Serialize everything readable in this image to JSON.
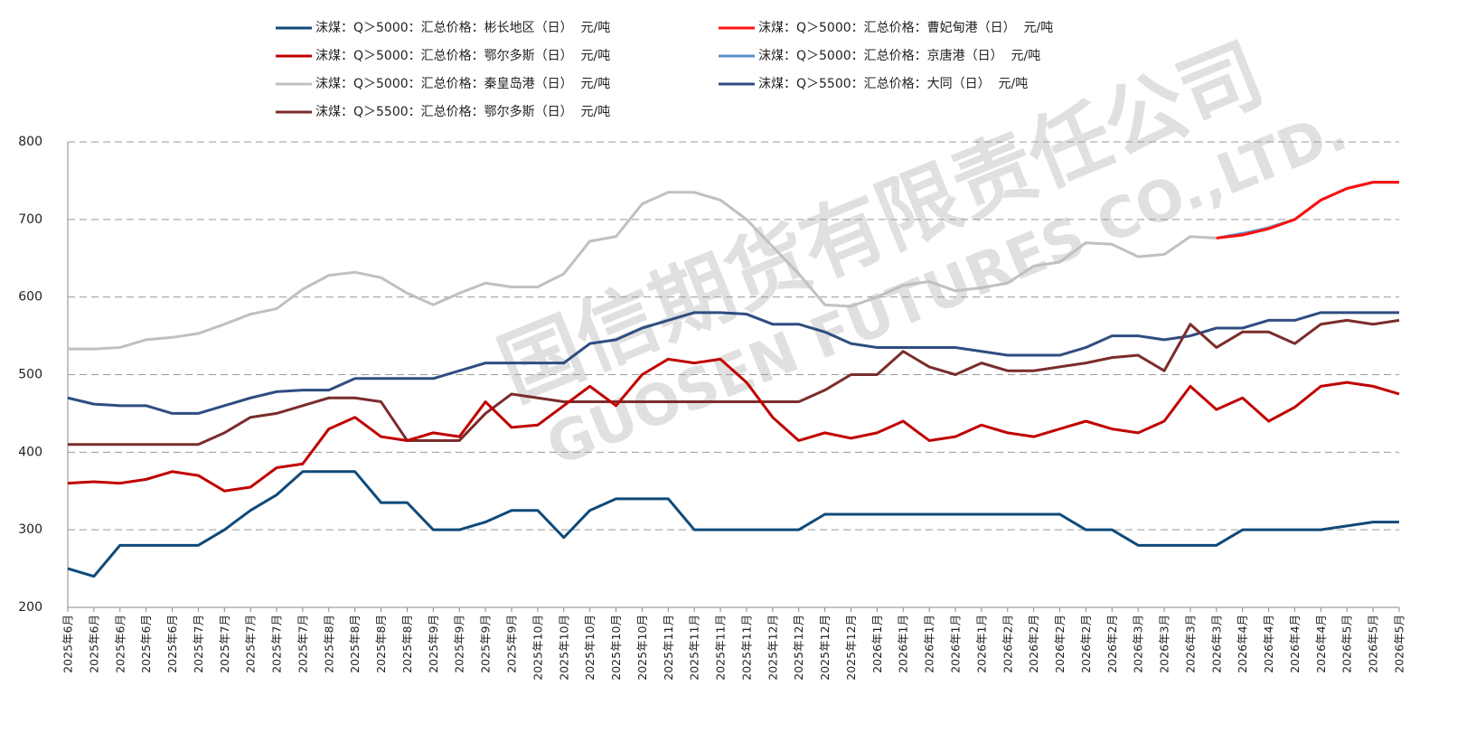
{
  "chart_data": {
    "type": "line",
    "watermark": [
      "国信期货有限责任公司",
      "GUOSEN FUTURES CO.,LTD."
    ],
    "categories": [
      "2025年6月",
      "2025年6月",
      "2025年6月",
      "2025年6月",
      "2025年6月",
      "2025年7月",
      "2025年7月",
      "2025年7月",
      "2025年7月",
      "2025年7月",
      "2025年8月",
      "2025年8月",
      "2025年8月",
      "2025年8月",
      "2025年9月",
      "2025年9月",
      "2025年9月",
      "2025年9月",
      "2025年10月",
      "2025年10月",
      "2025年10月",
      "2025年10月",
      "2025年10月",
      "2025年11月",
      "2025年11月",
      "2025年11月",
      "2025年11月",
      "2025年12月",
      "2025年12月",
      "2025年12月",
      "2025年12月",
      "2026年1月",
      "2026年1月",
      "2026年1月",
      "2026年1月",
      "2026年1月",
      "2026年2月",
      "2026年2月",
      "2026年2月",
      "2026年2月",
      "2026年2月",
      "2026年3月",
      "2026年3月",
      "2026年3月",
      "2026年3月",
      "2026年4月",
      "2026年4月",
      "2026年4月",
      "2026年4月",
      "2026年5月",
      "2026年5月",
      "2026年5月"
    ],
    "series": [
      {
        "name": "沫煤：Q＞5000：汇总价格：彬长地区（日）  元/吨",
        "color": "#0f4a7a",
        "values": [
          250,
          240,
          280,
          280,
          280,
          280,
          300,
          325,
          345,
          375,
          375,
          375,
          335,
          335,
          300,
          300,
          310,
          325,
          325,
          290,
          325,
          340,
          340,
          340,
          300,
          300,
          300,
          300,
          300,
          320,
          320,
          320,
          320,
          320,
          320,
          320,
          320,
          320,
          320,
          300,
          300,
          280,
          280,
          280,
          280,
          300,
          300,
          300,
          300,
          305,
          310,
          310
        ]
      },
      {
        "name": "沫煤：Q＞5000：汇总价格：曹妃甸港（日）  元/吨",
        "color": "#ff1010",
        "values": [
          null,
          null,
          null,
          null,
          null,
          null,
          null,
          null,
          null,
          null,
          null,
          null,
          null,
          null,
          null,
          null,
          null,
          null,
          null,
          null,
          null,
          null,
          null,
          null,
          null,
          null,
          null,
          null,
          null,
          null,
          null,
          null,
          null,
          null,
          null,
          null,
          null,
          null,
          null,
          null,
          null,
          null,
          null,
          null,
          676,
          680,
          688,
          700,
          725,
          740,
          748,
          748
        ]
      },
      {
        "name": "沫煤：Q＞5000：汇总价格：鄂尔多斯（日）  元/吨",
        "color": "#c00000",
        "values": [
          360,
          362,
          360,
          365,
          375,
          370,
          350,
          355,
          380,
          385,
          430,
          445,
          420,
          415,
          425,
          420,
          465,
          432,
          435,
          460,
          485,
          460,
          500,
          520,
          515,
          520,
          490,
          445,
          415,
          425,
          418,
          425,
          440,
          415,
          420,
          435,
          425,
          420,
          430,
          440,
          430,
          425,
          440,
          485,
          455,
          470,
          440,
          458,
          485,
          490,
          485,
          475
        ]
      },
      {
        "name": "沫煤：Q＞5000：汇总价格：京唐港（日）  元/吨",
        "color": "#5b8fc9",
        "values": [
          null,
          null,
          null,
          null,
          null,
          null,
          null,
          null,
          null,
          null,
          null,
          null,
          null,
          null,
          null,
          null,
          null,
          null,
          null,
          null,
          null,
          null,
          null,
          null,
          null,
          null,
          null,
          null,
          null,
          null,
          null,
          null,
          null,
          null,
          null,
          null,
          null,
          null,
          null,
          null,
          null,
          null,
          null,
          null,
          676,
          682,
          689,
          700,
          725,
          740,
          748,
          748
        ]
      },
      {
        "name": "沫煤：Q＞5000：汇总价格：秦皇岛港（日）  元/吨",
        "color": "#c0c0c0",
        "values": [
          533,
          533,
          535,
          545,
          548,
          553,
          565,
          578,
          585,
          610,
          628,
          632,
          625,
          605,
          590,
          605,
          618,
          613,
          613,
          630,
          672,
          678,
          720,
          735,
          735,
          725,
          700,
          665,
          630,
          590,
          588,
          600,
          615,
          620,
          608,
          612,
          618,
          640,
          645,
          670,
          668,
          652,
          655,
          678,
          676,
          680,
          690,
          700,
          725,
          740,
          748,
          748
        ]
      },
      {
        "name": "沫煤：Q＞5500：汇总价格：大同（日）  元/吨",
        "color": "#2f4d80",
        "values": [
          470,
          462,
          460,
          460,
          450,
          450,
          460,
          470,
          478,
          480,
          480,
          495,
          495,
          495,
          495,
          505,
          515,
          515,
          515,
          515,
          540,
          545,
          560,
          570,
          580,
          580,
          578,
          565,
          565,
          555,
          540,
          535,
          535,
          535,
          535,
          530,
          525,
          525,
          525,
          535,
          550,
          550,
          545,
          550,
          560,
          560,
          570,
          570,
          580,
          580,
          580,
          580
        ]
      },
      {
        "name": "沫煤：Q＞5500：汇总价格：鄂尔多斯（日）  元/吨",
        "color": "#7b2c2c",
        "values": [
          410,
          410,
          410,
          410,
          410,
          410,
          425,
          445,
          450,
          460,
          470,
          470,
          465,
          415,
          415,
          415,
          450,
          475,
          470,
          465,
          465,
          465,
          465,
          465,
          465,
          465,
          465,
          465,
          465,
          480,
          500,
          500,
          530,
          510,
          500,
          515,
          505,
          505,
          510,
          515,
          522,
          525,
          505,
          565,
          535,
          555,
          555,
          540,
          565,
          570,
          565,
          570
        ]
      }
    ],
    "ylim": [
      200,
      800
    ],
    "yticks": [
      200,
      300,
      400,
      500,
      600,
      700,
      800
    ],
    "grid": true
  }
}
